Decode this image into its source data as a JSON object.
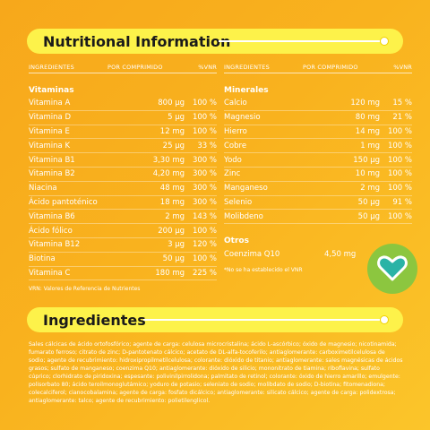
{
  "header_nutritional": {
    "title": "Nutritional Information"
  },
  "header_ingredients": {
    "title": "Ingredientes"
  },
  "table_headers": {
    "ingredientes": "INGREDIENTES",
    "por_comprimido": "POR COMPRIMIDO",
    "vnr": "%VNR"
  },
  "vitaminas": {
    "title": "Vitaminas",
    "items": [
      {
        "name": "Vitamina A",
        "amount": "800 µg",
        "vnr": "100 %"
      },
      {
        "name": "Vitamina D",
        "amount": "5 µg",
        "vnr": "100 %"
      },
      {
        "name": "Vitamina E",
        "amount": "12 mg",
        "vnr": "100 %"
      },
      {
        "name": "Vitamina K",
        "amount": "25 µg",
        "vnr": "33 %"
      },
      {
        "name": "Vitamina B1",
        "amount": "3,30 mg",
        "vnr": "300 %"
      },
      {
        "name": "Vitamina B2",
        "amount": "4,20 mg",
        "vnr": "300 %"
      },
      {
        "name": "Niacina",
        "amount": "48 mg",
        "vnr": "300 %"
      },
      {
        "name": "Ácido pantoténico",
        "amount": "18 mg",
        "vnr": "300 %"
      },
      {
        "name": "Vitamina B6",
        "amount": "2 mg",
        "vnr": "143 %"
      },
      {
        "name": "Ácido fólico",
        "amount": "200 µg",
        "vnr": "100 %"
      },
      {
        "name": "Vitamina B12",
        "amount": "3 µg",
        "vnr": "120 %"
      },
      {
        "name": "Biotina",
        "amount": "50 µg",
        "vnr": "100 %"
      },
      {
        "name": "Vitamina C",
        "amount": "180 mg",
        "vnr": "225 %"
      }
    ],
    "note": "VRN: Valores de Referencia de Nutrientes"
  },
  "minerales": {
    "title": "Minerales",
    "items": [
      {
        "name": "Calcio",
        "amount": "120 mg",
        "vnr": "15 %"
      },
      {
        "name": "Magnesio",
        "amount": "80 mg",
        "vnr": "21 %"
      },
      {
        "name": "Hierro",
        "amount": "14 mg",
        "vnr": "100 %"
      },
      {
        "name": "Cobre",
        "amount": "1 mg",
        "vnr": "100 %"
      },
      {
        "name": "Yodo",
        "amount": "150 µg",
        "vnr": "100 %"
      },
      {
        "name": "Zinc",
        "amount": "10 mg",
        "vnr": "100 %"
      },
      {
        "name": "Manganeso",
        "amount": "2 mg",
        "vnr": "100 %"
      },
      {
        "name": "Selenio",
        "amount": "50 µg",
        "vnr": "91 %"
      },
      {
        "name": "Molibdeno",
        "amount": "50 µg",
        "vnr": "100 %"
      }
    ]
  },
  "otros": {
    "title": "Otros",
    "items": [
      {
        "name": "Coenzima Q10",
        "amount": "4,50 mg",
        "vnr": ""
      }
    ],
    "note": "*No se ha establecido el VNR"
  },
  "ingredients_text": "Sales cálcicas de ácido ortofosfórico; agente de carga: celulosa microcristalina; ácido L-ascórbico; óxido de magnesio; nicotinamida; fumarato ferroso; citrato de zinc; D-pantotenato cálcico; acetato de DL-alfa-tocoferilo; antiaglomerante: carboximetilcelulosa de sodio; agente de recubrimiento: hidroxipropilmetilcelulosa; colorante: dióxido de titanio; antiaglomerante: sales magnésicas de ácidos grasos; sulfato de manganeso; coenzima Q10; antiaglomerante: dióxido de silicio; mononitrato de tiamina; riboflavina; sulfato cúprico; clorhidrato de piridoxina; espesante: polivinilpirrolidona; palmitato de retinol; colorante: óxido de hierro amarillo; emulgente: polisorbato 80; ácido teroilmonoglutámico; yoduro de potasio; seleniato de sodio; molibdato de sodio; D-biotina; fitomenadiona; colecalciferol; cianocobalamina; agente de carga: fosfato dicálcico; antiaglomerante: silicato cálcico; agente de carga: polidextrosa; antiaglomerante: talco; agente de recubrimiento: polietilenglicol.",
  "colors": {
    "background": "#f9b21e",
    "pill": "#fdf24a",
    "badge": "#8cc63f",
    "heart": "#2ab3a6"
  },
  "badge_icon": "heart-icon"
}
